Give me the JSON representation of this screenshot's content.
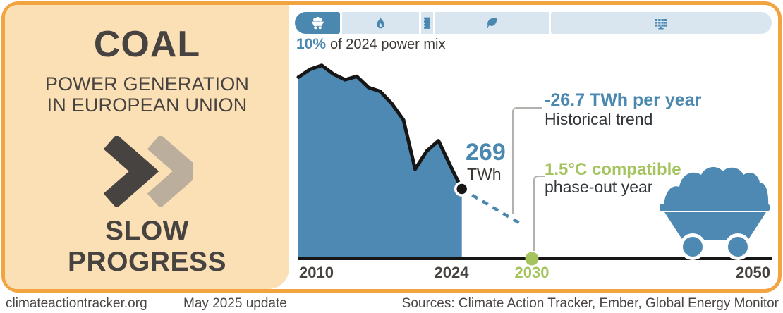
{
  "left_panel": {
    "title": "COAL",
    "subtitle_line1": "POWER GENERATION",
    "subtitle_line2": "IN EUROPEAN UNION",
    "verdict_line1": "SLOW",
    "verdict_line2": "PROGRESS"
  },
  "header": {
    "share_value": "10%",
    "share_rest": "of 2024 power mix"
  },
  "tabs": [
    {
      "name": "coal",
      "icon": "coal-cart-icon",
      "active": true,
      "width_pct": 9.7
    },
    {
      "name": "gas",
      "icon": "flame-icon",
      "active": false,
      "width_pct": 16.3
    },
    {
      "name": "oil",
      "icon": "oil-barrel-icon",
      "active": false,
      "width_pct": 2.6
    },
    {
      "name": "bioenergy",
      "icon": "leaf-icon",
      "active": false,
      "width_pct": 24.2
    },
    {
      "name": "renewables",
      "icon": "solar-panel-icon",
      "active": false,
      "width_pct": 47.2
    }
  ],
  "annotations": {
    "current_value": "269",
    "current_unit": "TWh",
    "trend_value": "-26.7 TWh per year",
    "trend_label": "Historical trend",
    "compatible_value": "1.5°C compatible",
    "compatible_label": "phase-out year"
  },
  "axis": {
    "ticks": [
      {
        "label": "2010"
      },
      {
        "label": "2024"
      },
      {
        "label": "2030"
      },
      {
        "label": "2050"
      }
    ]
  },
  "footer": {
    "site": "climateactiontracker.org",
    "update": "May 2025 update",
    "sources": "Sources: Climate Action Tracker, Ember, Global Energy Monitor"
  },
  "colors": {
    "accent_blue": "#4A88B0",
    "light_blue": "#D9E5EF",
    "green": "#A5C45F",
    "orange_border": "#F1A43F",
    "peach_panel": "#FBDFB5",
    "dark_text": "#474340"
  },
  "chart_data": {
    "type": "area",
    "title": "Coal power generation in European Union",
    "unit": "TWh",
    "x": [
      2010,
      2011,
      2012,
      2013,
      2014,
      2015,
      2016,
      2017,
      2018,
      2019,
      2020,
      2021,
      2022,
      2023,
      2024
    ],
    "values": [
      700,
      730,
      745,
      712,
      690,
      703,
      660,
      645,
      598,
      535,
      345,
      415,
      455,
      360,
      269
    ],
    "x_range": [
      2010,
      2050
    ],
    "y_range": [
      0,
      760
    ],
    "grid": false,
    "current": {
      "year": 2024,
      "value": 269
    },
    "trend": {
      "rate_twh_per_year": -26.7,
      "label": "Historical trend",
      "extension_years": 5.2
    },
    "phase_out": {
      "year": 2030,
      "label": "1.5°C compatible phase-out year"
    },
    "xticks": [
      "2010",
      "2024",
      "2030",
      "2050"
    ]
  }
}
